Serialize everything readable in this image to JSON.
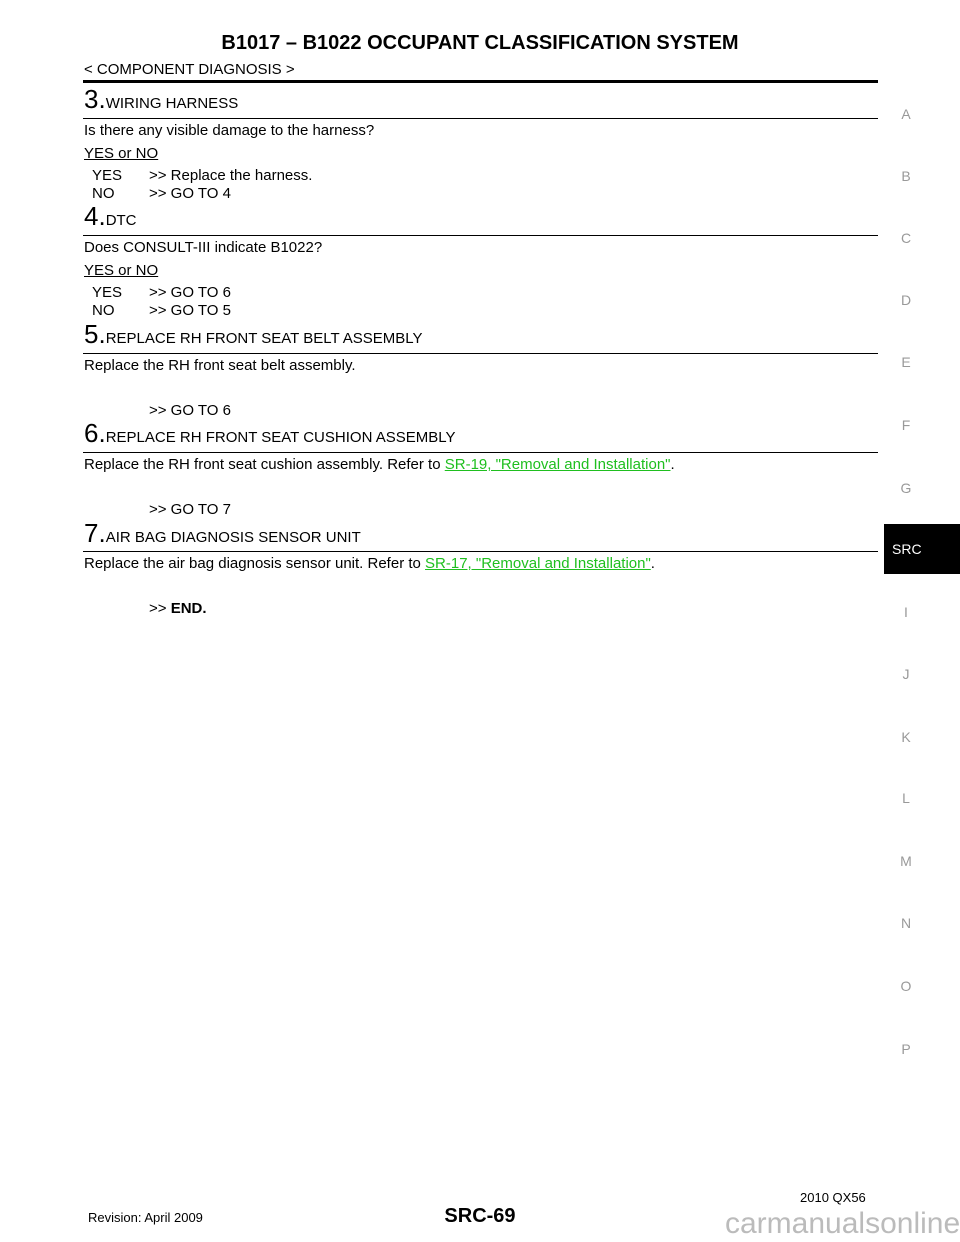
{
  "header": {
    "title": "B1017 – B1022 OCCUPANT CLASSIFICATION SYSTEM",
    "section": "< COMPONENT DIAGNOSIS >"
  },
  "steps": [
    {
      "num": "3.",
      "title": "WIRING HARNESS",
      "question": "Is there any visible damage to the harness?",
      "yesno": "YES or NO",
      "yes_label": "YES",
      "yes_action": ">> Replace the harness.",
      "no_label": "NO",
      "no_action": ">> GO TO 4"
    },
    {
      "num": "4.",
      "title": "DTC",
      "question": "Does CONSULT-III indicate B1022?",
      "yesno": "YES or NO",
      "yes_label": "YES",
      "yes_action": ">> GO TO 6",
      "no_label": "NO",
      "no_action": ">> GO TO 5"
    },
    {
      "num": "5.",
      "title": "REPLACE RH FRONT SEAT BELT ASSEMBLY",
      "text": "Replace the RH front seat belt assembly.",
      "action": ">> GO TO 6"
    },
    {
      "num": "6.",
      "title": "REPLACE RH FRONT SEAT CUSHION ASSEMBLY",
      "text": "Replace the RH front seat cushion assembly.  Refer to ",
      "link": "SR-19, \"Removal and Installation\"",
      "end": ".",
      "action": ">> GO TO 7"
    },
    {
      "num": "7.",
      "title": "AIR BAG DIAGNOSIS SENSOR UNIT",
      "text": "Replace the air bag diagnosis sensor unit.  Refer to ",
      "link": "SR-17, \"Removal and Installation\"",
      "end": ".",
      "action": ">> ",
      "action_bold": "END."
    }
  ],
  "side_tabs": [
    "A",
    "B",
    "C",
    "D",
    "E",
    "F",
    "G",
    "SRC",
    "I",
    "J",
    "K",
    "L",
    "M",
    "N",
    "O",
    "P"
  ],
  "active_tab": "SRC",
  "footer": {
    "revision": "Revision: April 2009",
    "page": "SRC-69",
    "model": "2010 QX56"
  },
  "watermark": "carmanualsonline.info",
  "colors": {
    "link": "#1fbf1f",
    "active_tab_bg": "#000000"
  }
}
